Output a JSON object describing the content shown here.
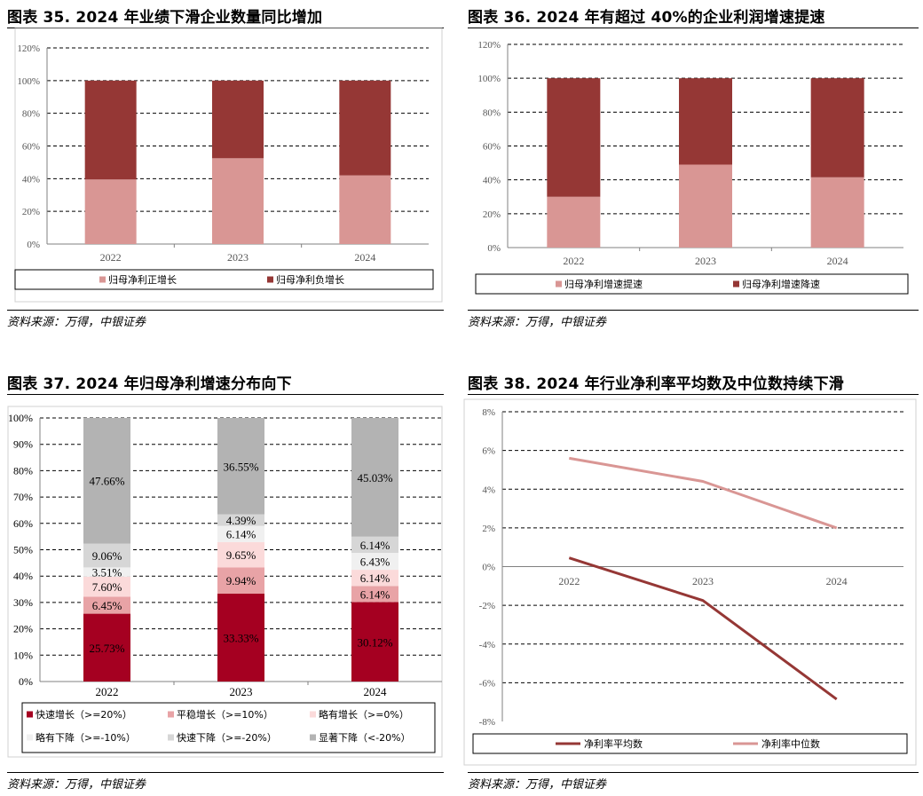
{
  "figures": [
    {
      "title": "图表 35. 2024 年业绩下滑企业数量同比增加",
      "source": "资料来源：万得，中银证券",
      "chart_data": {
        "type": "bar",
        "stacked": true,
        "categories": [
          "2022",
          "2023",
          "2024"
        ],
        "series": [
          {
            "name": "归母净利正增长",
            "values": [
              39.5,
              52.5,
              42
            ],
            "color": "#d99694"
          },
          {
            "name": "归母净利负增长",
            "values": [
              60.5,
              47.5,
              58
            ],
            "color": "#953735"
          }
        ],
        "yticks": [
          "0%",
          "20%",
          "40%",
          "60%",
          "80%",
          "100%",
          "120%"
        ],
        "ylim": [
          0,
          120
        ],
        "grid": true,
        "legend": "bottom"
      }
    },
    {
      "title": "图表 36. 2024 年有超过 40%的企业利润增速提速",
      "source": "资料来源：万得，中银证券",
      "chart_data": {
        "type": "bar",
        "stacked": true,
        "categories": [
          "2022",
          "2023",
          "2024"
        ],
        "series": [
          {
            "name": "归母净利增速提速",
            "values": [
              30,
              49,
              41.5
            ],
            "color": "#d99694"
          },
          {
            "name": "归母净利增速降速",
            "values": [
              70,
              51,
              58.5
            ],
            "color": "#953735"
          }
        ],
        "yticks": [
          "0%",
          "20%",
          "40%",
          "60%",
          "80%",
          "100%",
          "120%"
        ],
        "ylim": [
          0,
          120
        ],
        "grid": true,
        "legend": "bottom"
      }
    },
    {
      "title": "图表 37. 2024 年归母净利增速分布向下",
      "source": "资料来源：万得，中银证券",
      "chart_data": {
        "type": "bar",
        "stacked": true,
        "categories": [
          "2022",
          "2023",
          "2024"
        ],
        "series": [
          {
            "name": "快速增长（>=20%）",
            "values": [
              25.73,
              33.33,
              30.12
            ],
            "labels": [
              "25.73%",
              "33.33%",
              "30.12%"
            ],
            "color": "#a50021"
          },
          {
            "name": "平稳增长（>=10%）",
            "values": [
              6.45,
              9.94,
              6.14
            ],
            "labels": [
              "6.45%",
              "9.94%",
              "6.14%"
            ],
            "color": "#e8a3a6"
          },
          {
            "name": "略有增长（>=0%）",
            "values": [
              7.6,
              9.65,
              6.14
            ],
            "labels": [
              "7.60%",
              "9.65%",
              "6.14%"
            ],
            "color": "#fbdada"
          },
          {
            "name": "略有下降（>=-10%）",
            "values": [
              3.51,
              6.14,
              6.43
            ],
            "labels": [
              "3.51%",
              "6.14%",
              "6.43%"
            ],
            "color": "#f0f0f0"
          },
          {
            "name": "快速下降（>=-20%）",
            "values": [
              9.06,
              4.39,
              6.14
            ],
            "labels": [
              "9.06%",
              "4.39%",
              "6.14%"
            ],
            "color": "#d6d6d6"
          },
          {
            "name": "显著下降（<-20%）",
            "values": [
              47.66,
              36.55,
              45.03
            ],
            "labels": [
              "47.66%",
              "36.55%",
              "45.03%"
            ],
            "color": "#b3b3b3"
          }
        ],
        "yticks": [
          "0%",
          "10%",
          "20%",
          "30%",
          "40%",
          "50%",
          "60%",
          "70%",
          "80%",
          "90%",
          "100%"
        ],
        "ylim": [
          0,
          100
        ],
        "grid": true,
        "legend": "bottom"
      }
    },
    {
      "title": "图表 38. 2024 年行业净利率平均数及中位数持续下滑",
      "source": "资料来源：万得，中银证券",
      "chart_data": {
        "type": "line",
        "x": [
          "2022",
          "2023",
          "2024"
        ],
        "series": [
          {
            "name": "净利率平均数",
            "values": [
              0.45,
              -1.75,
              -6.85
            ],
            "color": "#953735"
          },
          {
            "name": "净利率中位数",
            "values": [
              5.6,
              4.4,
              2.0
            ],
            "color": "#d99694"
          }
        ],
        "yticks": [
          "-8%",
          "-6%",
          "-4%",
          "-2%",
          "0%",
          "2%",
          "4%",
          "6%",
          "8%"
        ],
        "ylim": [
          -8,
          8
        ],
        "grid": true,
        "legend": "bottom"
      }
    }
  ]
}
